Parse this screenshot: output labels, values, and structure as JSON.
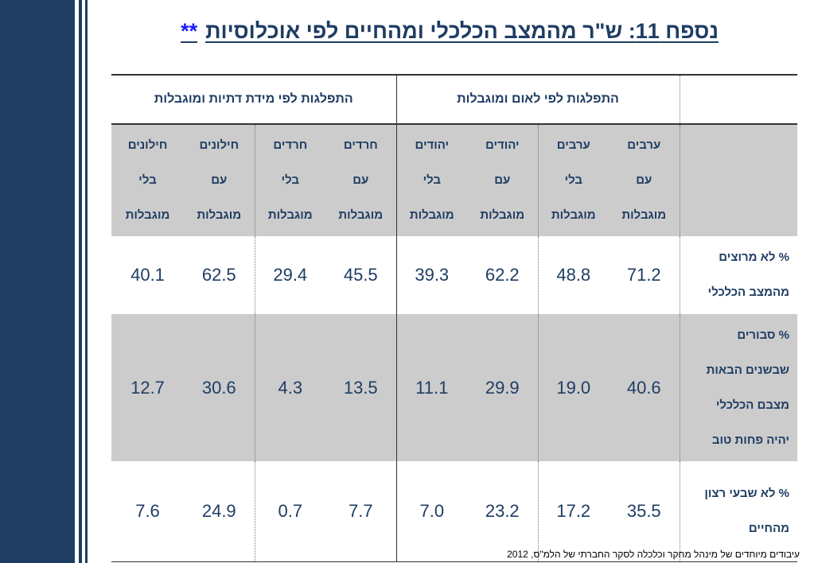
{
  "title": {
    "text": "נספח 11: ש\"ר מהמצב הכלכלי ומהחיים לפי אוכלוסיות",
    "stars": "**"
  },
  "groups": {
    "nation": "התפלגות לפי לאום ומוגבלות",
    "religion": "התפלגות לפי מידת דתיות ומוגבלות"
  },
  "columns": [
    [
      "ערבים",
      "עם",
      "מוגבלות"
    ],
    [
      "ערבים",
      "בלי",
      "מוגבלות"
    ],
    [
      "יהודים",
      "עם",
      "מוגבלות"
    ],
    [
      "יהודים",
      "בלי",
      "מוגבלות"
    ],
    [
      "חרדים",
      "עם",
      "מוגבלות"
    ],
    [
      "חרדים",
      "בלי",
      "מוגבלות"
    ],
    [
      "חילונים",
      "עם",
      "מוגבלות"
    ],
    [
      "חילונים",
      "בלי",
      "מוגבלות"
    ]
  ],
  "rows": [
    {
      "label": [
        "% לא מרוצים",
        "מהמצב הכלכלי"
      ],
      "values": [
        "71.2",
        "48.8",
        "62.2",
        "39.3",
        "45.5",
        "29.4",
        "62.5",
        "40.1"
      ]
    },
    {
      "label": [
        "% סבורים",
        "שבשנים הבאות",
        "מצבם הכלכלי",
        "יהיה פחות טוב"
      ],
      "values": [
        "40.6",
        "19.0",
        "29.9",
        "11.1",
        "13.5",
        "4.3",
        "30.6",
        "12.7"
      ]
    },
    {
      "label": [
        "% לא שבעי רצון",
        "מהחיים"
      ],
      "values": [
        "35.5",
        "17.2",
        "23.2",
        "7.0",
        "7.7",
        "0.7",
        "24.9",
        "7.6"
      ]
    }
  ],
  "footer": "עיבודים מיוחדים של מינהל מחקר וכלכלה לסקר החברתי של הלמ\"ס, 2012",
  "colors": {
    "navy": "#1f3d63",
    "gray": "#cccccc",
    "link": "#1a1aff"
  }
}
